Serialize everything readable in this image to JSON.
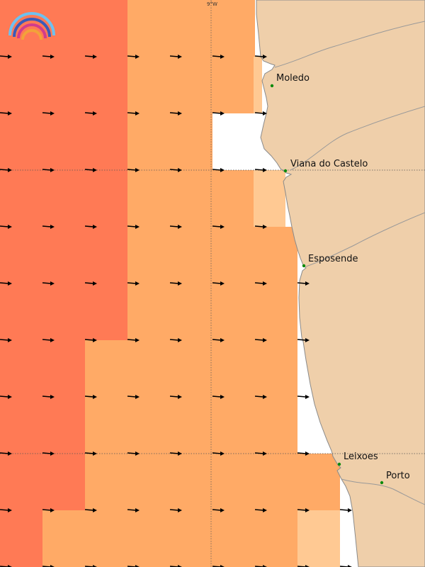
{
  "map": {
    "grid_label": "9°W",
    "colors": {
      "sea_high": "#ff7a55",
      "sea_mid": "#ffaa66",
      "sea_low": "#ffc993",
      "land": "#efcfaa",
      "coast": "#8a8a8a",
      "arrow": "#000000",
      "place_dot": "#0a8a0a"
    },
    "places": [
      {
        "name": "Moledo"
      },
      {
        "name": "Viana do Castelo"
      },
      {
        "name": "Esposende"
      },
      {
        "name": "Leixoes"
      },
      {
        "name": "Porto"
      }
    ],
    "arrow_direction": "east"
  }
}
